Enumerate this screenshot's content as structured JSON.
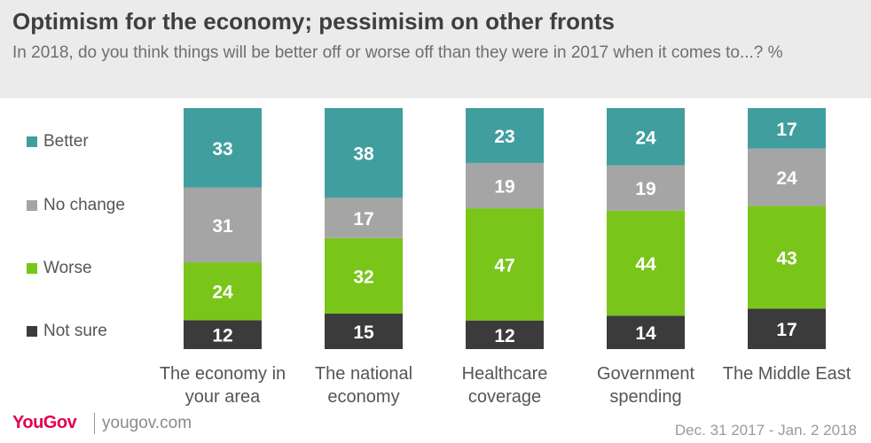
{
  "header": {
    "title": "Optimism for the economy; pessimisim on other fronts",
    "subtitle": "In 2018, do you think things will be better off or worse off than they were in 2017 when it comes to...? %"
  },
  "legend": [
    {
      "label": "Better",
      "color": "#419e9f"
    },
    {
      "label": "No change",
      "color": "#a5a5a5"
    },
    {
      "label": "Worse",
      "color": "#7ac51a"
    },
    {
      "label": "Not sure",
      "color": "#3b3b3b"
    }
  ],
  "chart_data": {
    "type": "bar",
    "stacked": true,
    "orientation": "vertical",
    "categories": [
      "The economy in your area",
      "The national economy",
      "Healthcare coverage",
      "Government spending",
      "The Middle East"
    ],
    "series": [
      {
        "name": "Not sure",
        "color": "#3b3b3b",
        "values": [
          12,
          15,
          12,
          14,
          17
        ]
      },
      {
        "name": "Worse",
        "color": "#7ac51a",
        "values": [
          24,
          32,
          47,
          44,
          43
        ]
      },
      {
        "name": "No change",
        "color": "#a5a5a5",
        "values": [
          31,
          17,
          19,
          19,
          24
        ]
      },
      {
        "name": "Better",
        "color": "#419e9f",
        "values": [
          33,
          38,
          23,
          24,
          17
        ]
      }
    ],
    "ylim": [
      0,
      100
    ],
    "unit": "%",
    "data_labels": true,
    "legend_position": "left",
    "grid": false
  },
  "footer": {
    "brand": "YouGov",
    "site": "yougov.com",
    "date": "Dec. 31 2017 - Jan. 2 2018"
  }
}
